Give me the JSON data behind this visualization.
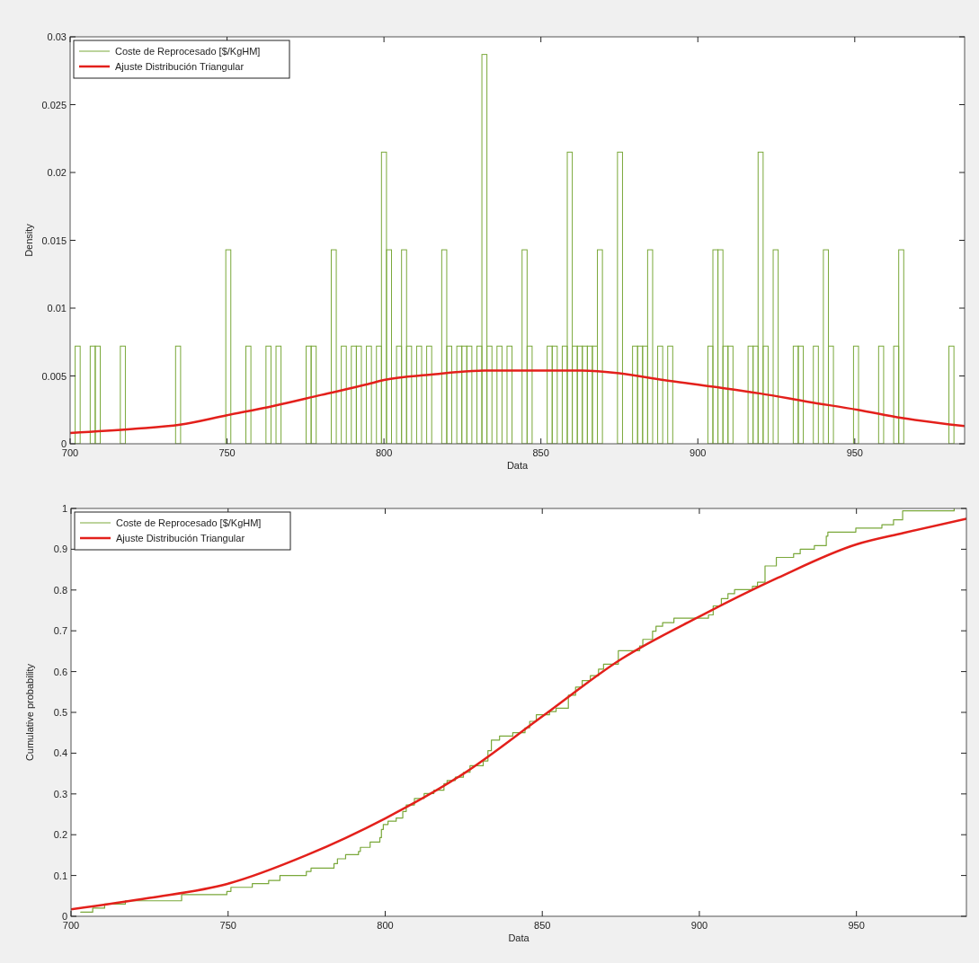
{
  "chart_data": [
    {
      "type": "histogram",
      "xlabel": "Data",
      "ylabel": "Density",
      "xlim": [
        700,
        985
      ],
      "ylim": [
        0,
        0.03
      ],
      "xticks": [
        700,
        750,
        800,
        850,
        900,
        950
      ],
      "yticks": [
        0,
        0.005,
        0.01,
        0.015,
        0.02,
        0.025,
        0.03
      ],
      "grid": false,
      "legend": "top left",
      "series": [
        {
          "name": "Coste de Reprocesado [$/KgHM]",
          "color": "#7aa83a",
          "bins": [
            700,
            701.6,
            703.2,
            704.8,
            706.4,
            708,
            709.6,
            711.2,
            712.8,
            714.4,
            716,
            717.6,
            719.2,
            720.8,
            722.4,
            724,
            725.6,
            727.2,
            728.8,
            730.4,
            732,
            733.6,
            735.2,
            736.8,
            738.4,
            740,
            741.6,
            743.2,
            744.8,
            746.4,
            748,
            749.6,
            751.2,
            752.8,
            754.4,
            756,
            757.6,
            759.2,
            760.8,
            762.4,
            764,
            765.6,
            767.2,
            768.8,
            770.4,
            772,
            773.6,
            775.2,
            776.8,
            778.4,
            780,
            781.6,
            783.2,
            784.8,
            786.4,
            788,
            789.6,
            791.2,
            792.8,
            794.4,
            796,
            797.6,
            799.2,
            800.8,
            802.4,
            804,
            805.6,
            807.2,
            808.8,
            810.4,
            812,
            813.6,
            815.2,
            816.8,
            818.4,
            820,
            821.6,
            823.2,
            824.8,
            826.4,
            828,
            829.6,
            831.2,
            832.8,
            834.4,
            836,
            837.6,
            839.2,
            840.8,
            842.4,
            844,
            845.6,
            847.2,
            848.8,
            850.4,
            852,
            853.6,
            855.2,
            856.8,
            858.4,
            860,
            861.6,
            863.2,
            864.8,
            866.4,
            868,
            869.6,
            871.2,
            872.8,
            874.4,
            876,
            877.6,
            879.2,
            880.8,
            882.4,
            884,
            885.6,
            887.2,
            888.8,
            890.4,
            892,
            893.6,
            895.2,
            896.8,
            898.4,
            900,
            901.6,
            903.2,
            904.8,
            906.4,
            908,
            909.6,
            911.2,
            912.8,
            914.4,
            916,
            917.6,
            919.2,
            920.8,
            922.4,
            924,
            925.6,
            927.2,
            928.8,
            930.4,
            932,
            933.6,
            935.2,
            936.8,
            938.4,
            940,
            941.6,
            943.2,
            944.8,
            946.4,
            948,
            949.6,
            951.2,
            952.8,
            954.4,
            956,
            957.6,
            959.2,
            960.8,
            962.4,
            964,
            965.6,
            967.2,
            968.8,
            970.4,
            972,
            973.6,
            975.2,
            976.8,
            978.4,
            980,
            981.6,
            983.2,
            984.8
          ],
          "values": [
            0,
            0.0072,
            0,
            0,
            0.0072,
            0.0072,
            0,
            0,
            0,
            0,
            0.0072,
            0,
            0,
            0,
            0,
            0,
            0,
            0,
            0,
            0,
            0,
            0.0072,
            0,
            0,
            0,
            0,
            0,
            0,
            0,
            0,
            0,
            0.0143,
            0,
            0,
            0,
            0.0072,
            0,
            0,
            0,
            0.0072,
            0,
            0.0072,
            0,
            0,
            0,
            0,
            0,
            0.0072,
            0.0072,
            0,
            0,
            0,
            0.0143,
            0,
            0.0072,
            0,
            0.0072,
            0.0072,
            0,
            0.0072,
            0,
            0.0072,
            0.0215,
            0.0143,
            0,
            0.0072,
            0.0143,
            0.0072,
            0,
            0.0072,
            0,
            0.0072,
            0,
            0,
            0.0143,
            0.0072,
            0,
            0.0072,
            0.0072,
            0.0072,
            0,
            0.0072,
            0.0287,
            0.0072,
            0,
            0.0072,
            0,
            0.0072,
            0,
            0,
            0.0143,
            0.0072,
            0,
            0,
            0,
            0.0072,
            0.0072,
            0,
            0.0072,
            0.0215,
            0.0072,
            0.0072,
            0.0072,
            0.0072,
            0.0072,
            0.0143,
            0,
            0,
            0,
            0.0215,
            0,
            0,
            0.0072,
            0.0072,
            0.0072,
            0.0143,
            0,
            0.0072,
            0,
            0.0072,
            0,
            0,
            0,
            0,
            0,
            0,
            0,
            0.0072,
            0.0143,
            0.0143,
            0.0072,
            0.0072,
            0,
            0,
            0,
            0.0072,
            0.0072,
            0.0215,
            0.0072,
            0,
            0.0143,
            0,
            0,
            0,
            0.0072,
            0.0072,
            0,
            0,
            0.0072,
            0,
            0.0143,
            0.0072,
            0,
            0,
            0,
            0,
            0.0072,
            0,
            0,
            0,
            0,
            0.0072,
            0,
            0,
            0.0072,
            0.0143,
            0,
            0,
            0,
            0,
            0,
            0,
            0,
            0,
            0,
            0.0072,
            0,
            0
          ]
        },
        {
          "type": "line",
          "name": "Ajuste Distribución Triangular",
          "color": "#e3201b",
          "x": [
            700,
            720,
            735,
            750,
            765,
            780,
            795,
            800,
            815,
            832,
            863,
            875,
            889,
            905,
            920,
            935,
            951,
            965,
            985
          ],
          "values": [
            0.0008,
            0.0011,
            0.0014,
            0.0021,
            0.0028,
            0.0036,
            0.0044,
            0.0047,
            0.0051,
            0.0054,
            0.0054,
            0.0052,
            0.0047,
            0.0042,
            0.0037,
            0.0031,
            0.0025,
            0.0019,
            0.0013
          ]
        }
      ]
    },
    {
      "type": "line",
      "xlabel": "Data",
      "ylabel": "Cumulative probability",
      "xlim": [
        700,
        985
      ],
      "ylim": [
        0,
        1
      ],
      "xticks": [
        700,
        750,
        800,
        850,
        900,
        950
      ],
      "yticks": [
        0,
        0.1,
        0.2,
        0.3,
        0.4,
        0.5,
        0.6,
        0.7,
        0.8,
        0.9,
        1
      ],
      "grid": false,
      "legend": "top left",
      "series": [
        {
          "type": "step",
          "name": "Coste de Reprocesado [$/KgHM]",
          "color": "#7aa83a",
          "x": [
            703.1,
            706.9,
            710.7,
            717.3,
            735.2,
            749.6,
            750.9,
            757.7,
            762.9,
            766.5,
            774.9,
            776.4,
            783.7,
            784.8,
            787.4,
            791.5,
            792.1,
            795.2,
            798.3,
            798.8,
            799.4,
            800.9,
            803.5,
            805.6,
            806.7,
            809.3,
            812.4,
            815.5,
            818.7,
            819.7,
            822.3,
            824.9,
            827,
            831.2,
            832.7,
            833.8,
            836.4,
            840.6,
            844.5,
            846,
            848.1,
            852.3,
            854.4,
            858.3,
            860.6,
            862.7,
            865.3,
            867.9,
            869.5,
            874.2,
            881,
            882,
            885.1,
            886.2,
            888.3,
            891.9,
            902.9,
            904.4,
            907,
            909.1,
            911.2,
            916.9,
            918.5,
            920.9,
            924.5,
            930,
            932.1,
            936.6,
            940.4,
            940.9,
            949.8,
            958.1,
            961.8,
            964.7,
            981.1
          ],
          "values": [
            0.01,
            0.02,
            0.03,
            0.038,
            0.053,
            0.061,
            0.071,
            0.08,
            0.088,
            0.1,
            0.11,
            0.118,
            0.129,
            0.141,
            0.151,
            0.159,
            0.169,
            0.182,
            0.193,
            0.213,
            0.225,
            0.233,
            0.241,
            0.257,
            0.273,
            0.289,
            0.301,
            0.309,
            0.325,
            0.333,
            0.341,
            0.353,
            0.369,
            0.381,
            0.406,
            0.432,
            0.442,
            0.45,
            0.462,
            0.478,
            0.494,
            0.502,
            0.51,
            0.542,
            0.562,
            0.578,
            0.59,
            0.606,
            0.618,
            0.651,
            0.663,
            0.679,
            0.699,
            0.711,
            0.72,
            0.731,
            0.739,
            0.761,
            0.779,
            0.791,
            0.801,
            0.809,
            0.819,
            0.859,
            0.88,
            0.889,
            0.9,
            0.909,
            0.932,
            0.942,
            0.952,
            0.96,
            0.972,
            0.994,
            1
          ]
        },
        {
          "name": "Ajuste Distribución Triangular",
          "color": "#e3201b",
          "x": [
            700,
            725,
            750,
            775,
            800,
            825,
            850,
            875,
            900,
            925,
            950,
            965,
            985
          ],
          "values": [
            0.017,
            0.045,
            0.08,
            0.15,
            0.24,
            0.35,
            0.49,
            0.63,
            0.735,
            0.83,
            0.912,
            0.94,
            0.975
          ]
        }
      ]
    }
  ]
}
